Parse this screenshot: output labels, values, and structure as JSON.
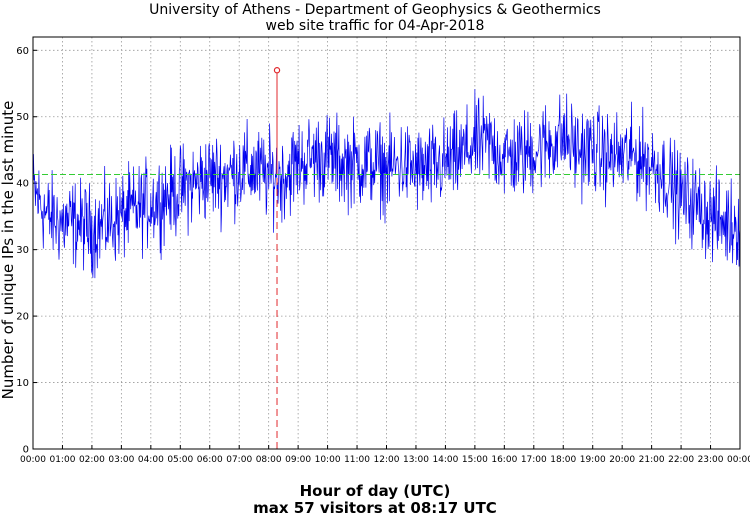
{
  "chart_data": {
    "type": "line",
    "title": "University of Athens - Department of Geophysics & Geothermics",
    "subtitle": "web site traffic for 04-Apr-2018",
    "xlabel": "Hour of day (UTC)",
    "ylabel": "Number of unique IPs in the last minute",
    "annotation": "max 57 visitors at 08:17 UTC",
    "ylim": [
      0,
      62
    ],
    "yticks": [
      0,
      10,
      20,
      30,
      40,
      50,
      60
    ],
    "xlim": [
      "00:00",
      "24:00"
    ],
    "xticks": [
      "00:00",
      "01:00",
      "02:00",
      "03:00",
      "04:00",
      "05:00",
      "06:00",
      "07:00",
      "08:00",
      "09:00",
      "10:00",
      "11:00",
      "12:00",
      "13:00",
      "14:00",
      "15:00",
      "16:00",
      "17:00",
      "18:00",
      "19:00",
      "20:00",
      "21:00",
      "22:00",
      "23:00",
      "00:00"
    ],
    "grid": true,
    "mean_line": {
      "value": 41.3,
      "color": "#33cc33"
    },
    "max_marker": {
      "time": "08:17",
      "value": 57,
      "color": "#e0282d"
    },
    "series": [
      {
        "color": "#0000ee",
        "x": [
          "00:00",
          "00:30",
          "01:00",
          "01:30",
          "02:00",
          "02:30",
          "03:00",
          "03:30",
          "04:00",
          "04:30",
          "05:00",
          "05:30",
          "06:00",
          "06:30",
          "07:00",
          "07:30",
          "08:00",
          "08:30",
          "09:00",
          "09:30",
          "10:00",
          "10:30",
          "11:00",
          "11:30",
          "12:00",
          "12:30",
          "13:00",
          "13:30",
          "14:00",
          "14:30",
          "15:00",
          "15:30",
          "16:00",
          "16:30",
          "17:00",
          "17:30",
          "18:00",
          "18:30",
          "19:00",
          "19:30",
          "20:00",
          "20:30",
          "21:00",
          "21:30",
          "22:00",
          "22:30",
          "23:00",
          "23:30",
          "24:00"
        ],
        "values": [
          39,
          35,
          34,
          34,
          33,
          34,
          35,
          36,
          37,
          38,
          39,
          40,
          41,
          41,
          42,
          42,
          41,
          41,
          43,
          44,
          44,
          43,
          43,
          43,
          42,
          43,
          42,
          42,
          43,
          44,
          46,
          46,
          44,
          44,
          45,
          46,
          47,
          45,
          45,
          44,
          44,
          44,
          43,
          41,
          38,
          37,
          35,
          34,
          34
        ]
      }
    ]
  }
}
